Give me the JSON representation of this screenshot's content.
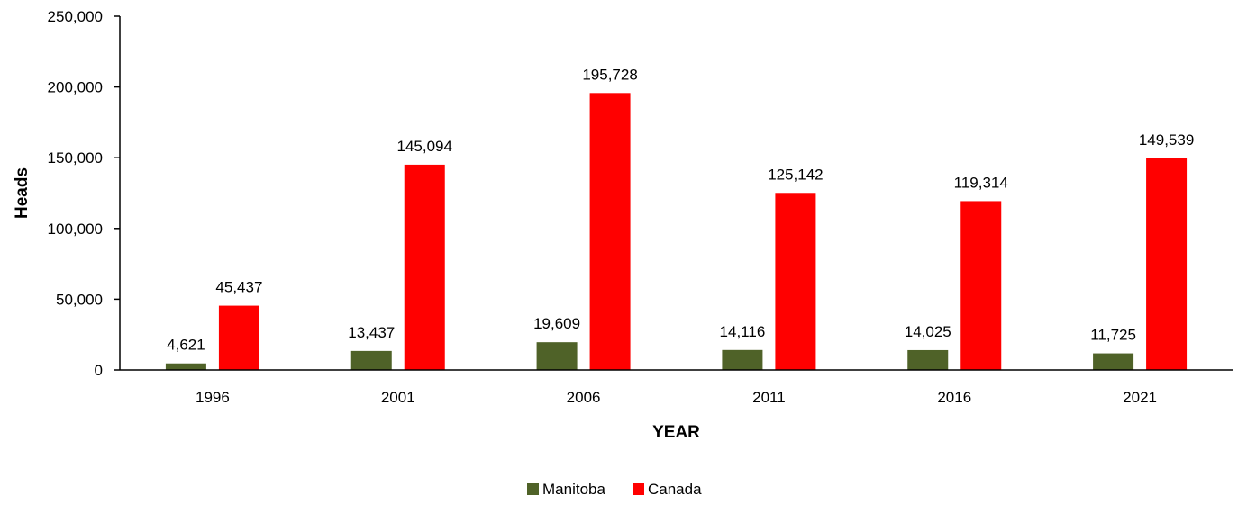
{
  "chart_data": {
    "type": "bar",
    "title": "",
    "xlabel": "YEAR",
    "ylabel": "Heads",
    "categories": [
      "1996",
      "2001",
      "2006",
      "2011",
      "2016",
      "2021"
    ],
    "series": [
      {
        "name": "Manitoba",
        "values": [
          4621,
          13437,
          19609,
          14116,
          14025,
          11725
        ],
        "color": "#4f6228"
      },
      {
        "name": "Canada",
        "values": [
          45437,
          145094,
          195728,
          125142,
          119314,
          149539
        ],
        "color": "#ff0000"
      }
    ],
    "data_labels": [
      [
        "4,621",
        "13,437",
        "19,609",
        "14,116",
        "14,025",
        "11,725"
      ],
      [
        "45,437",
        "145,094",
        "195,728",
        "125,142",
        "119,314",
        "149,539"
      ]
    ],
    "ylim": [
      0,
      250000
    ],
    "yticks": [
      0,
      50000,
      100000,
      150000,
      200000,
      250000
    ],
    "ytick_labels": [
      "0",
      "50,000",
      "100,000",
      "150,000",
      "200,000",
      "250,000"
    ],
    "grid": false,
    "legend_position": "bottom-center"
  }
}
